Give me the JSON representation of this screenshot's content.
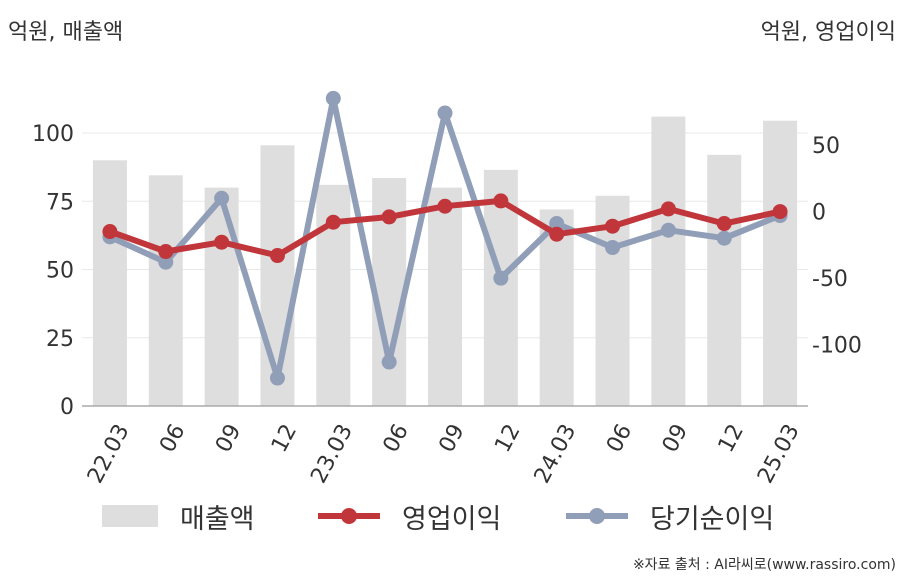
{
  "unit_left": "억원, 매출액",
  "unit_right": "억원, 영업이익",
  "source": "※자료 출처 : AI라씨로(www.rassiro.com)",
  "colors": {
    "bar": "#dedede",
    "operating": "#c0363a",
    "net": "#919eb8",
    "grid": "#e8e8e8",
    "axis": "#aaaaaa",
    "text": "#333333"
  },
  "chart_data": {
    "type": "bar",
    "categories": [
      "22.03",
      "06",
      "09",
      "12",
      "23.03",
      "06",
      "09",
      "12",
      "24.03",
      "06",
      "09",
      "12",
      "25.03"
    ],
    "left_axis": {
      "ticks": [
        0,
        25,
        50,
        75,
        100
      ],
      "ylim": [
        0,
        120
      ]
    },
    "right_axis": {
      "ticks": [
        -100,
        -50,
        0,
        50
      ],
      "ylim": [
        -146,
        100
      ]
    },
    "series": [
      {
        "name": "매출액",
        "type": "bar",
        "axis": "left",
        "values": [
          90,
          84.5,
          80,
          95.5,
          81,
          83.5,
          80,
          86.5,
          72,
          77,
          106,
          92,
          104.5
        ]
      },
      {
        "name": "영업이익",
        "type": "line",
        "axis": "right",
        "values": [
          -15,
          -30,
          -23,
          -33,
          -8,
          -4,
          4,
          8,
          -17,
          -11,
          2,
          -9,
          0
        ]
      },
      {
        "name": "당기순이익",
        "type": "line",
        "axis": "right",
        "values": [
          -19,
          -38,
          10,
          -125,
          85,
          -113,
          74,
          -50,
          -9,
          -27,
          -14,
          -20,
          -3
        ]
      }
    ]
  }
}
